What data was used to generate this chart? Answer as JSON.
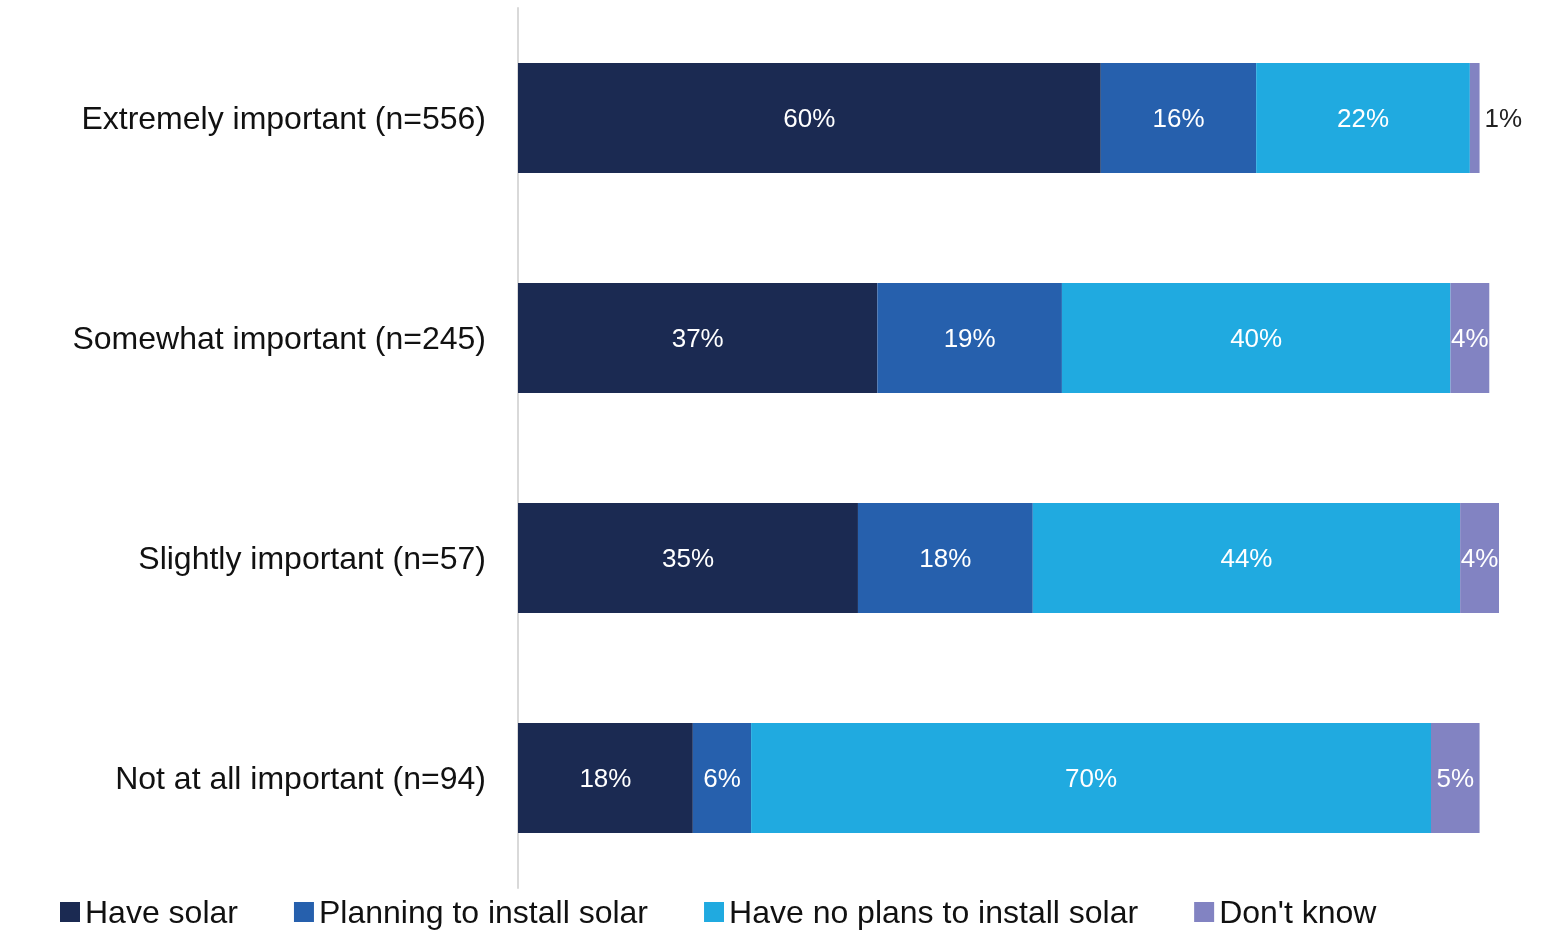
{
  "chart_data": {
    "type": "bar",
    "orientation": "horizontal",
    "stacked": true,
    "legend": "bottom",
    "categories": [
      "Extremely important (n=556)",
      "Somewhat important (n=245)",
      "Slightly important (n=57)",
      "Not at all important (n=94)"
    ],
    "series": [
      {
        "name": "Have solar",
        "color": "#1b2a52",
        "values": [
          60,
          37,
          35,
          18
        ],
        "value_labels": [
          "60%",
          "37%",
          "35%",
          "18%"
        ]
      },
      {
        "name": "Planning to install solar",
        "color": "#2660ad",
        "values": [
          16,
          19,
          18,
          6
        ],
        "value_labels": [
          "16%",
          "19%",
          "18%",
          "6%"
        ]
      },
      {
        "name": "Have no plans to install solar",
        "color": "#20aae0",
        "values": [
          22,
          40,
          44,
          70
        ],
        "value_labels": [
          "22%",
          "40%",
          "44%",
          "70%"
        ]
      },
      {
        "name": "Don't know",
        "color": "#8283c2",
        "values": [
          1,
          4,
          4,
          5
        ],
        "value_labels": [
          "1%",
          "4%",
          "4%",
          "5%"
        ]
      }
    ]
  }
}
